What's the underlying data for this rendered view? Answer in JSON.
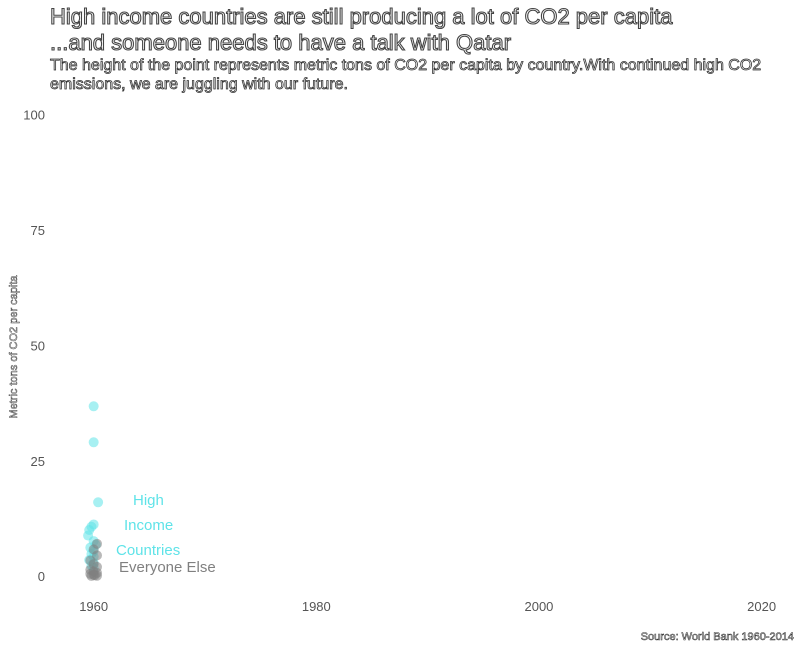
{
  "title_line1": "High income countries are still producing a lot of CO2 per capita",
  "title_line2": "...and someone needs to have a talk with Qatar",
  "subtitle": "The height of the point represents metric tons of CO2 per capita by country.With continued high CO2 emissions, we are juggling with our future.",
  "caption": "Source: World Bank 1960-2014",
  "colors": {
    "high_income": "#5fe3e8",
    "everyone_else": "#808080",
    "tick": "#555555"
  },
  "annotations": {
    "high_line1": "High",
    "high_line2": "Income",
    "high_line3": "Countries",
    "everyone_else": "Everyone Else"
  },
  "chart_data": {
    "type": "scatter",
    "title": "High income countries are still producing a lot of CO2 per capita",
    "subtitle": "...and someone needs to have a talk with Qatar",
    "xlabel": "",
    "ylabel": "Metric tons of CO2 per capita",
    "xlim": [
      1955,
      2023
    ],
    "ylim": [
      -3,
      101
    ],
    "x_ticks": [
      1960,
      1980,
      2000,
      2020
    ],
    "y_ticks": [
      0,
      25,
      50,
      75,
      100
    ],
    "grid": false,
    "series": [
      {
        "name": "High Income Countries",
        "points": [
          {
            "x": 1960,
            "y": 36.8
          },
          {
            "x": 1960,
            "y": 29.0
          },
          {
            "x": 1960.4,
            "y": 16.0
          },
          {
            "x": 1960,
            "y": 11.2
          },
          {
            "x": 1959.8,
            "y": 10.7
          },
          {
            "x": 1959.6,
            "y": 10.0
          },
          {
            "x": 1959.5,
            "y": 8.8
          },
          {
            "x": 1960,
            "y": 7.6
          },
          {
            "x": 1960.2,
            "y": 6.8
          },
          {
            "x": 1959.7,
            "y": 6.2
          },
          {
            "x": 1960,
            "y": 5.4
          },
          {
            "x": 1959.8,
            "y": 4.8
          },
          {
            "x": 1960,
            "y": 4.2
          },
          {
            "x": 1959.6,
            "y": 3.5
          },
          {
            "x": 1960,
            "y": 2.9
          },
          {
            "x": 1959.8,
            "y": 2.3
          },
          {
            "x": 1960,
            "y": 1.8
          }
        ]
      },
      {
        "name": "Everyone Else",
        "points": [
          {
            "x": 1960.3,
            "y": 7.0
          },
          {
            "x": 1960,
            "y": 5.8
          },
          {
            "x": 1960.3,
            "y": 4.5
          },
          {
            "x": 1959.7,
            "y": 3.4
          },
          {
            "x": 1960,
            "y": 2.6
          },
          {
            "x": 1960.3,
            "y": 2.0
          },
          {
            "x": 1959.7,
            "y": 1.4
          },
          {
            "x": 1960,
            "y": 1.0
          },
          {
            "x": 1960.3,
            "y": 0.7
          },
          {
            "x": 1959.7,
            "y": 0.5
          },
          {
            "x": 1960,
            "y": 0.3
          },
          {
            "x": 1960.3,
            "y": 0.1
          },
          {
            "x": 1959.8,
            "y": 0.05
          },
          {
            "x": 1960.1,
            "y": 0.2
          }
        ]
      }
    ]
  }
}
